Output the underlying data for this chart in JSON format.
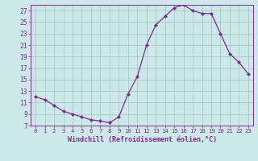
{
  "x": [
    0,
    1,
    2,
    3,
    4,
    5,
    6,
    7,
    8,
    9,
    10,
    11,
    12,
    13,
    14,
    15,
    16,
    17,
    18,
    19,
    20,
    21,
    22,
    23
  ],
  "y": [
    12,
    11.5,
    10.5,
    9.5,
    9.0,
    8.5,
    8.0,
    7.8,
    7.5,
    8.5,
    12.5,
    15.5,
    21.0,
    24.5,
    26.0,
    27.5,
    28.0,
    27.0,
    26.5,
    26.5,
    23.0,
    19.5,
    18.0,
    16.0
  ],
  "line_color": "#7b2d8b",
  "marker": "D",
  "marker_size": 2.2,
  "bg_color": "#cce8e8",
  "grid_color": "#aac8c8",
  "xlabel": "Windchill (Refroidissement éolien,°C)",
  "ylim": [
    7,
    28
  ],
  "xlim": [
    -0.5,
    23.5
  ],
  "yticks": [
    7,
    9,
    11,
    13,
    15,
    17,
    19,
    21,
    23,
    25,
    27
  ],
  "xticks": [
    0,
    1,
    2,
    3,
    4,
    5,
    6,
    7,
    8,
    9,
    10,
    11,
    12,
    13,
    14,
    15,
    16,
    17,
    18,
    19,
    20,
    21,
    22,
    23
  ],
  "tick_color": "#7b2d8b",
  "axis_color": "#7b2d8b"
}
